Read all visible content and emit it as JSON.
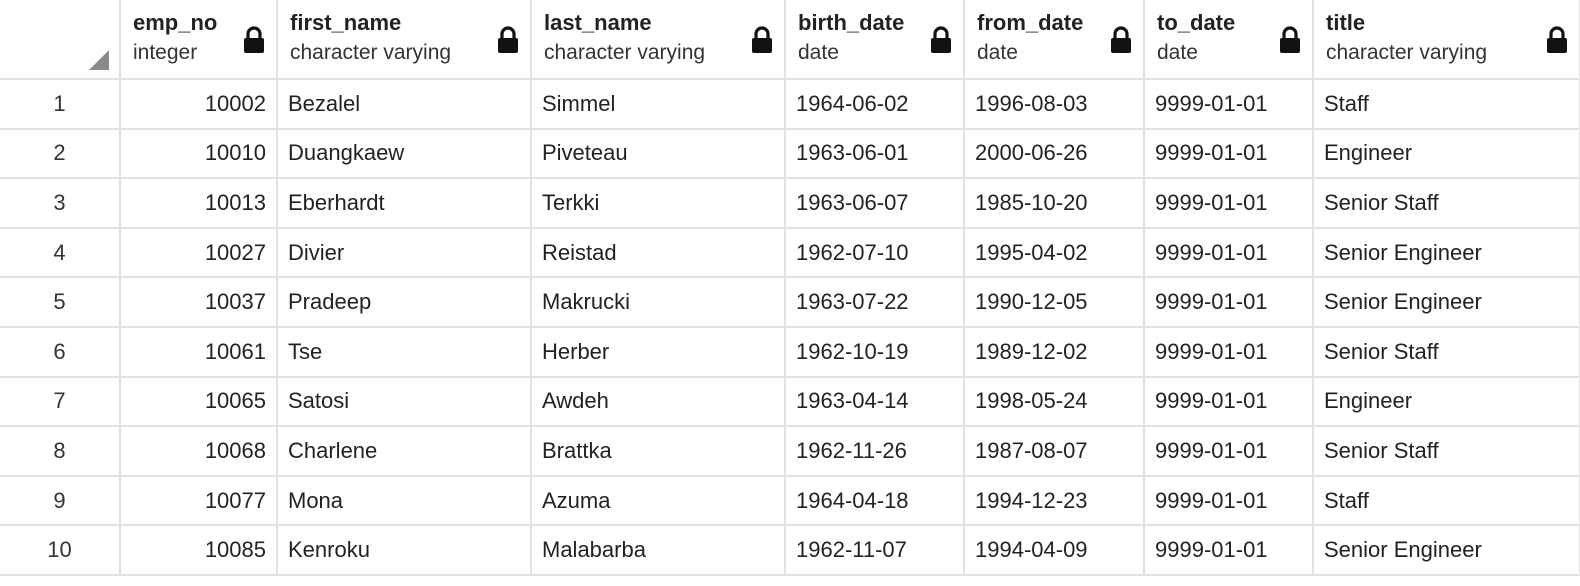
{
  "columns": [
    {
      "name": "emp_no",
      "type": "integer"
    },
    {
      "name": "first_name",
      "type": "character varying"
    },
    {
      "name": "last_name",
      "type": "character varying"
    },
    {
      "name": "birth_date",
      "type": "date"
    },
    {
      "name": "from_date",
      "type": "date"
    },
    {
      "name": "to_date",
      "type": "date"
    },
    {
      "name": "title",
      "type": "character varying"
    }
  ],
  "column_icon": "lock-icon",
  "rows": [
    {
      "n": "1",
      "cells": [
        "10002",
        "Bezalel",
        "Simmel",
        "1964-06-02",
        "1996-08-03",
        "9999-01-01",
        "Staff"
      ]
    },
    {
      "n": "2",
      "cells": [
        "10010",
        "Duangkaew",
        "Piveteau",
        "1963-06-01",
        "2000-06-26",
        "9999-01-01",
        "Engineer"
      ]
    },
    {
      "n": "3",
      "cells": [
        "10013",
        "Eberhardt",
        "Terkki",
        "1963-06-07",
        "1985-10-20",
        "9999-01-01",
        "Senior Staff"
      ]
    },
    {
      "n": "4",
      "cells": [
        "10027",
        "Divier",
        "Reistad",
        "1962-07-10",
        "1995-04-02",
        "9999-01-01",
        "Senior Engineer"
      ]
    },
    {
      "n": "5",
      "cells": [
        "10037",
        "Pradeep",
        "Makrucki",
        "1963-07-22",
        "1990-12-05",
        "9999-01-01",
        "Senior Engineer"
      ]
    },
    {
      "n": "6",
      "cells": [
        "10061",
        "Tse",
        "Herber",
        "1962-10-19",
        "1989-12-02",
        "9999-01-01",
        "Senior Staff"
      ]
    },
    {
      "n": "7",
      "cells": [
        "10065",
        "Satosi",
        "Awdeh",
        "1963-04-14",
        "1998-05-24",
        "9999-01-01",
        "Engineer"
      ]
    },
    {
      "n": "8",
      "cells": [
        "10068",
        "Charlene",
        "Brattka",
        "1962-11-26",
        "1987-08-07",
        "9999-01-01",
        "Senior Staff"
      ]
    },
    {
      "n": "9",
      "cells": [
        "10077",
        "Mona",
        "Azuma",
        "1964-04-18",
        "1994-12-23",
        "9999-01-01",
        "Staff"
      ]
    },
    {
      "n": "10",
      "cells": [
        "10085",
        "Kenroku",
        "Malabarba",
        "1962-11-07",
        "1994-04-09",
        "9999-01-01",
        "Senior Engineer"
      ]
    }
  ],
  "colors": {
    "grid_line": "#e2e2e2",
    "corner_marker": "#8a8a8a",
    "text": "#222222"
  }
}
